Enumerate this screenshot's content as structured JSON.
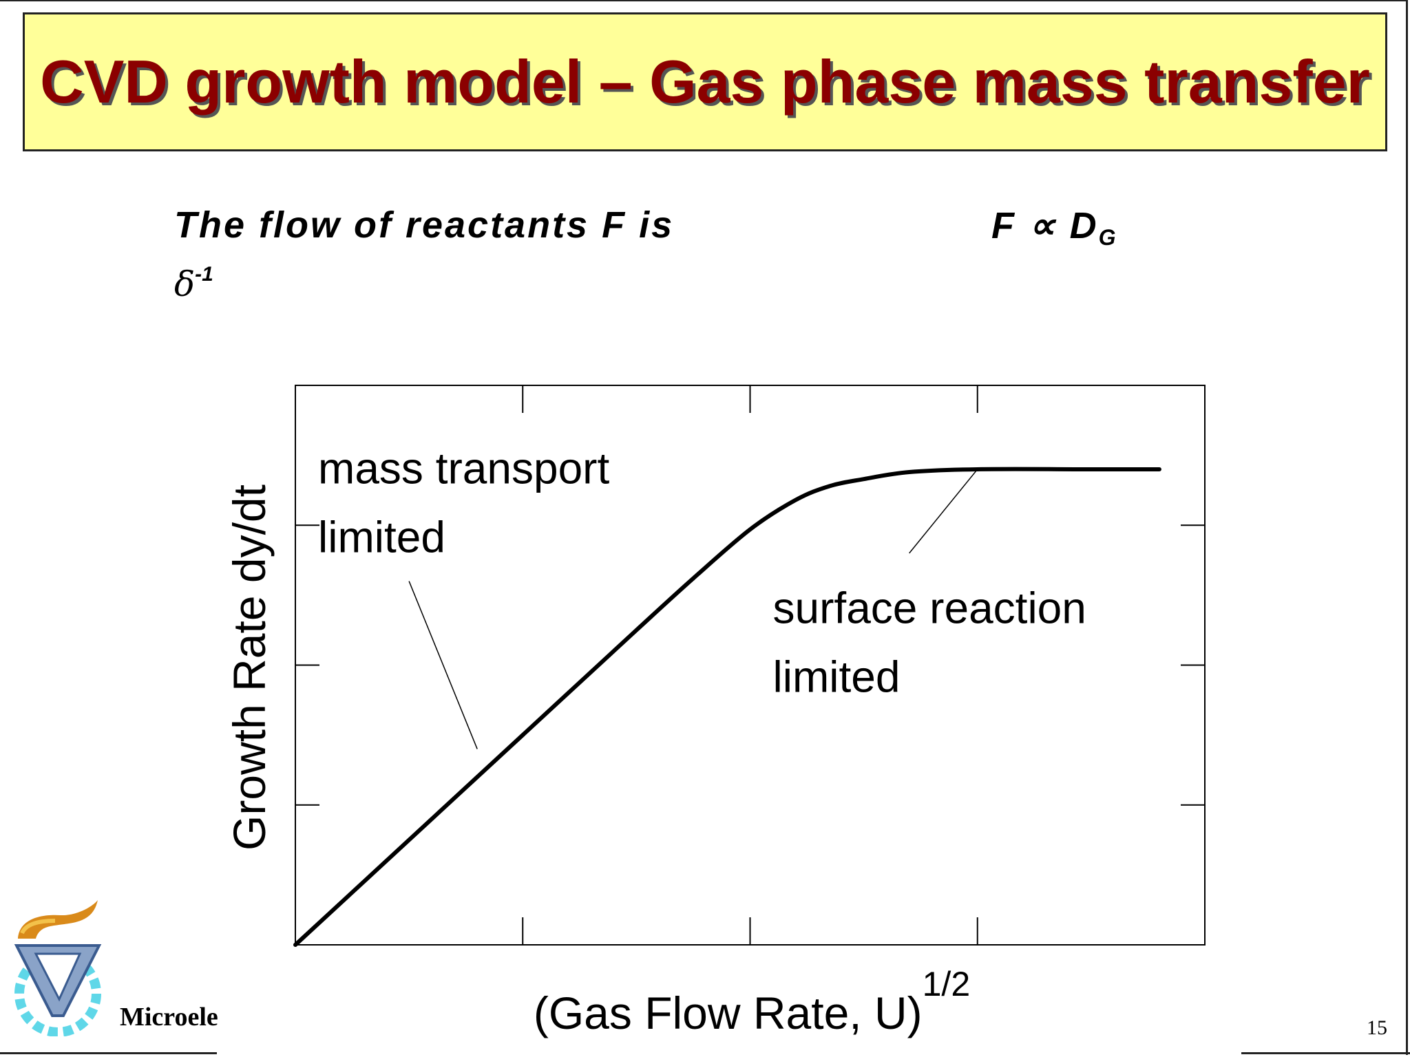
{
  "slide": {
    "title": "CVD growth model – Gas phase mass transfer",
    "flow_text": "The flow of reactants F is",
    "delta_symbol": "δ",
    "delta_exponent": "-1",
    "formula_main": "F ∝ D",
    "formula_subscript": "G",
    "footer_text": "Microelectronics",
    "page_number": "15"
  },
  "chart_data": {
    "type": "line",
    "xlabel": "(Gas Flow Rate,  U)",
    "xlabel_superscript": "1/2",
    "ylabel": "Growth Rate dy/dt",
    "xlim": [
      0,
      4
    ],
    "ylim": [
      0,
      4
    ],
    "x_ticks": [
      1,
      2,
      3
    ],
    "y_ticks": [
      1,
      2,
      3
    ],
    "series": [
      {
        "x": [
          0,
          0.5,
          1.0,
          1.5,
          1.75,
          2.0,
          2.2,
          2.35,
          2.5,
          2.7,
          3.0,
          3.5,
          3.8
        ],
        "y": [
          0,
          0.75,
          1.5,
          2.25,
          2.62,
          2.97,
          3.18,
          3.28,
          3.33,
          3.38,
          3.4,
          3.4,
          3.4
        ]
      }
    ],
    "annotations": [
      {
        "line1": "mass transport",
        "line2": "limited",
        "text_at": [
          0.1,
          3.3
        ],
        "leader_from": [
          0.5,
          2.6
        ],
        "leader_to": [
          0.8,
          1.4
        ]
      },
      {
        "line1": "surface reaction",
        "line2": "limited",
        "text_at": [
          2.1,
          2.3
        ],
        "leader_from": [
          2.7,
          2.8
        ],
        "leader_to": [
          3.0,
          3.4
        ]
      }
    ]
  }
}
